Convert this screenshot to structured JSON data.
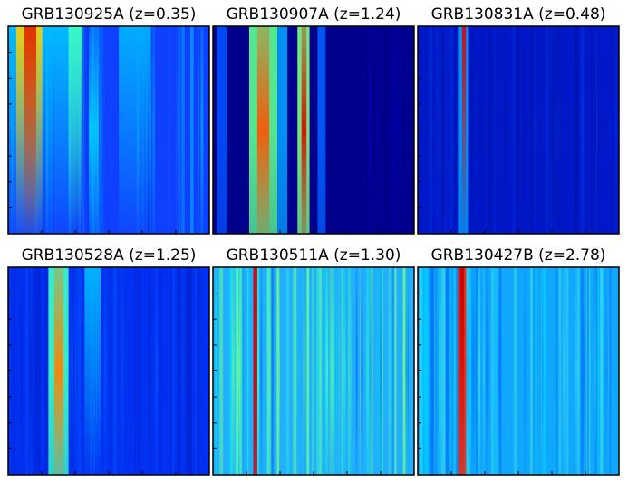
{
  "panels": [
    {
      "title": "GRB130925A (z=0.35)"
    },
    {
      "title": "GRB130907A (z=1.24)"
    },
    {
      "title": "GRB130831A (z=0.48)"
    },
    {
      "title": "GRB130528A (z=1.25)"
    },
    {
      "title": "GRB130511A (z=1.30)"
    },
    {
      "title": "GRB130427B (z=2.78)"
    }
  ]
}
